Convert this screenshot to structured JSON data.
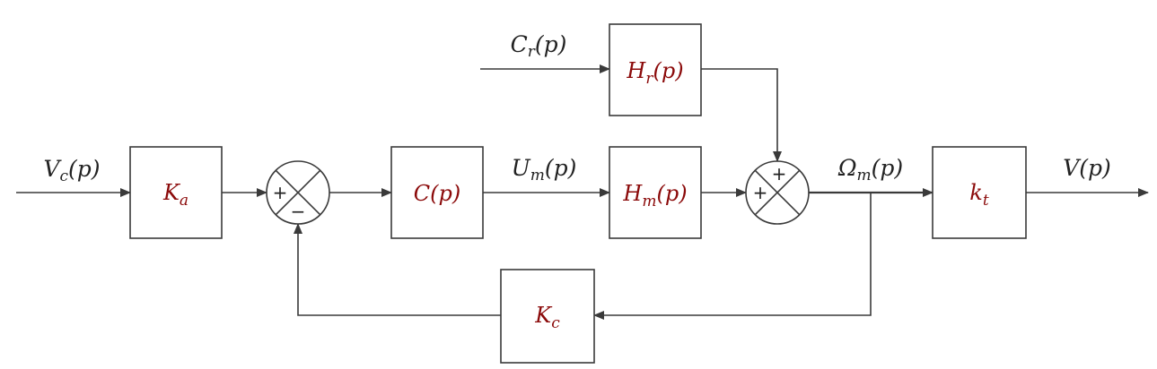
{
  "signals": {
    "vc": {
      "base": "V",
      "sub": "c",
      "arg": "(p)"
    },
    "um": {
      "base": "U",
      "sub": "m",
      "arg": "(p)"
    },
    "omega": {
      "base": "Ω",
      "sub": "m",
      "arg": "(p)"
    },
    "v": {
      "base": "V",
      "sub": "",
      "arg": "(p)"
    },
    "cr": {
      "base": "C",
      "sub": "r",
      "arg": "(p)"
    }
  },
  "blocks": {
    "ka": {
      "base": "K",
      "sub": "a",
      "arg": ""
    },
    "c": {
      "base": "C",
      "sub": "",
      "arg": "(p)"
    },
    "hm": {
      "base": "H",
      "sub": "m",
      "arg": "(p)"
    },
    "hr": {
      "base": "H",
      "sub": "r",
      "arg": "(p)"
    },
    "kt": {
      "base": "k",
      "sub": "t",
      "arg": ""
    },
    "kc": {
      "base": "K",
      "sub": "c",
      "arg": ""
    }
  },
  "summers": {
    "s1": {
      "left_sign": "+",
      "bottom_sign": "−"
    },
    "s2": {
      "top_sign": "+",
      "left_sign": "+"
    }
  },
  "colors": {
    "block_text": "#8b0a0a",
    "line": "#3a3a3a"
  }
}
